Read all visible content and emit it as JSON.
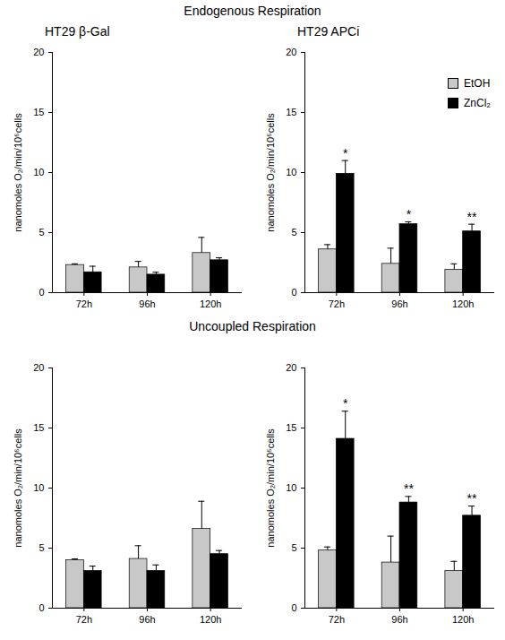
{
  "section_titles": [
    "Endogenous Respiration",
    "Uncoupled Respiration"
  ],
  "chart_data": [
    {
      "type": "bar",
      "title": "HT29 β-Gal",
      "ylabel": "nanomoles O₂/min/10⁶cells",
      "categories": [
        "72h",
        "96h",
        "120h"
      ],
      "series": [
        {
          "name": "EtOH",
          "color": "#c8c8c8",
          "values": [
            2.3,
            2.1,
            3.3
          ],
          "errors": [
            0.1,
            0.5,
            1.3
          ]
        },
        {
          "name": "ZnCl₂",
          "color": "#000000",
          "values": [
            1.7,
            1.5,
            2.7
          ],
          "errors": [
            0.5,
            0.2,
            0.2
          ]
        }
      ],
      "ylim": [
        0,
        20
      ],
      "yticks": [
        0,
        5,
        10,
        15,
        20
      ],
      "grid": false
    },
    {
      "type": "bar",
      "title": "HT29 APCi",
      "ylabel": "nanomoles O₂/min/10⁶cells",
      "categories": [
        "72h",
        "96h",
        "120h"
      ],
      "series": [
        {
          "name": "EtOH",
          "color": "#c8c8c8",
          "values": [
            3.6,
            2.4,
            1.9
          ],
          "errors": [
            0.4,
            1.3,
            0.5
          ]
        },
        {
          "name": "ZnCl₂",
          "color": "#000000",
          "values": [
            9.9,
            5.7,
            5.1
          ],
          "errors": [
            1.1,
            0.2,
            0.6
          ]
        }
      ],
      "annotations": [
        {
          "category": "72h",
          "series": "ZnCl₂",
          "text": "*"
        },
        {
          "category": "96h",
          "series": "ZnCl₂",
          "text": "*"
        },
        {
          "category": "120h",
          "series": "ZnCl₂",
          "text": "**"
        }
      ],
      "ylim": [
        0,
        20
      ],
      "yticks": [
        0,
        5,
        10,
        15,
        20
      ],
      "grid": false,
      "legend": "top-right"
    },
    {
      "type": "bar",
      "ylabel": "nanomoles O₂/min/10⁶cells",
      "categories": [
        "72h",
        "96h",
        "120h"
      ],
      "series": [
        {
          "name": "EtOH",
          "color": "#c8c8c8",
          "values": [
            4.0,
            4.1,
            6.6
          ],
          "errors": [
            0.1,
            1.1,
            2.3
          ]
        },
        {
          "name": "ZnCl₂",
          "color": "#000000",
          "values": [
            3.1,
            3.1,
            4.5
          ],
          "errors": [
            0.4,
            0.5,
            0.3
          ]
        }
      ],
      "ylim": [
        0,
        20
      ],
      "yticks": [
        0,
        5,
        10,
        15,
        20
      ],
      "grid": false
    },
    {
      "type": "bar",
      "ylabel": "nanomoles O₂/min/10⁶cells",
      "categories": [
        "72h",
        "96h",
        "120h"
      ],
      "series": [
        {
          "name": "EtOH",
          "color": "#c8c8c8",
          "values": [
            4.8,
            3.8,
            3.1
          ],
          "errors": [
            0.3,
            2.2,
            0.8
          ]
        },
        {
          "name": "ZnCl₂",
          "color": "#000000",
          "values": [
            14.1,
            8.8,
            7.7
          ],
          "errors": [
            2.3,
            0.5,
            0.8
          ]
        }
      ],
      "annotations": [
        {
          "category": "72h",
          "series": "ZnCl₂",
          "text": "*"
        },
        {
          "category": "96h",
          "series": "ZnCl₂",
          "text": "**"
        },
        {
          "category": "120h",
          "series": "ZnCl₂",
          "text": "**"
        }
      ],
      "ylim": [
        0,
        20
      ],
      "yticks": [
        0,
        5,
        10,
        15,
        20
      ],
      "grid": false
    }
  ]
}
